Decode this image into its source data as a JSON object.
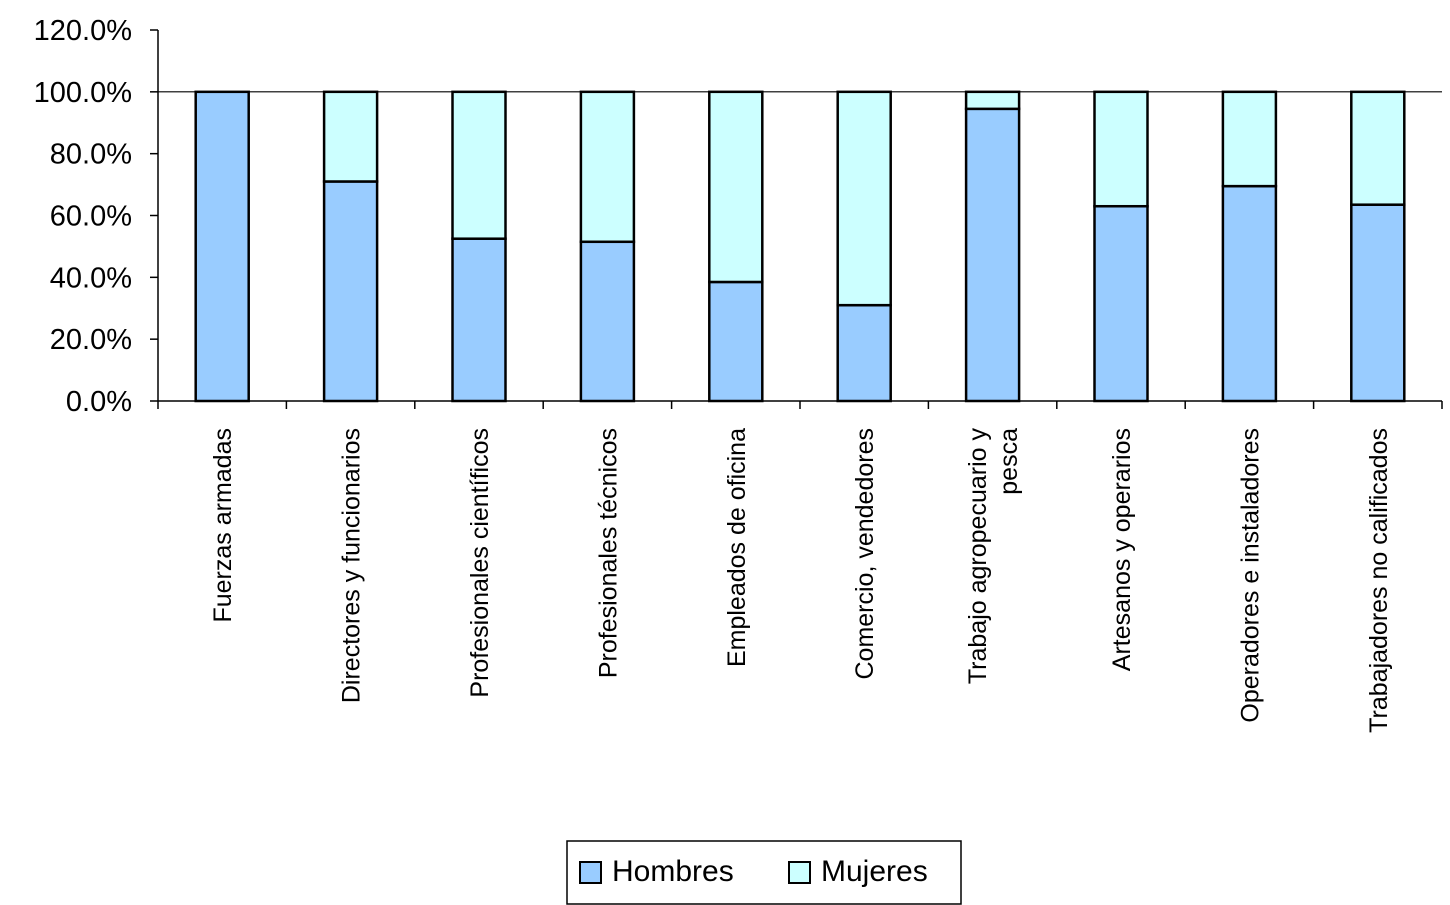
{
  "chart_data": {
    "type": "bar",
    "stacked": true,
    "categories": [
      [
        "Fuerzas armadas"
      ],
      [
        "Directores y funcionarios"
      ],
      [
        "Profesionales científicos"
      ],
      [
        "Profesionales técnicos"
      ],
      [
        "Empleados de oficina"
      ],
      [
        "Comercio, vendedores"
      ],
      [
        "Trabajo agropecuario y",
        "pesca"
      ],
      [
        "Artesanos y operarios"
      ],
      [
        "Operadores e instaladores"
      ],
      [
        "Trabajadores no calificados"
      ]
    ],
    "series": [
      {
        "name": "Hombres",
        "color": "#99ccff",
        "values": [
          100.0,
          71.0,
          52.5,
          51.5,
          38.5,
          31.0,
          94.5,
          63.0,
          69.5,
          63.5
        ]
      },
      {
        "name": "Mujeres",
        "color": "#ccffff",
        "values": [
          0.0,
          29.0,
          47.5,
          48.5,
          61.5,
          69.0,
          5.5,
          37.0,
          30.5,
          36.5
        ]
      }
    ],
    "ylim": [
      0,
      120
    ],
    "yticks": [
      "0.0%",
      "20.0%",
      "40.0%",
      "60.0%",
      "80.0%",
      "100.0%",
      "120.0%"
    ],
    "grid": false,
    "legend_position": "bottom",
    "title": "",
    "xlabel": "",
    "ylabel": ""
  }
}
